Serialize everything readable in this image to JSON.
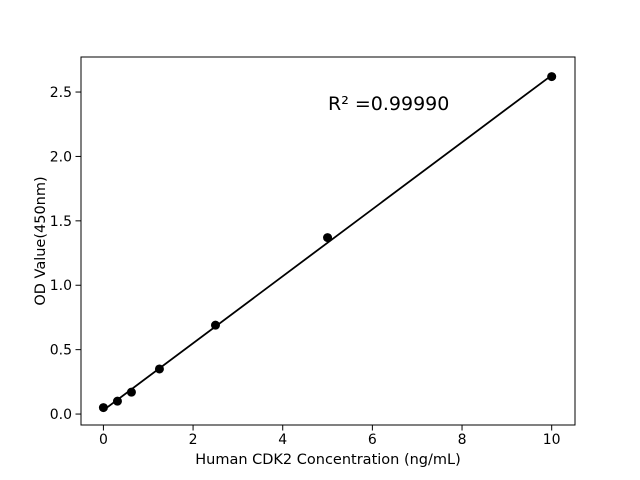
{
  "figure": {
    "background": "#ffffff"
  },
  "chart_data": {
    "type": "scatter",
    "title": "",
    "xlabel": "Human CDK2 Concentration (ng/mL)",
    "ylabel": "OD Value(450nm)",
    "annotation": {
      "text": "R² =0.99990"
    },
    "x": [
      0,
      0.313,
      0.625,
      1.25,
      2.5,
      5,
      10
    ],
    "y": [
      0.05,
      0.1,
      0.17,
      0.35,
      0.69,
      1.37,
      2.62
    ],
    "fit_line": {
      "x": [
        0,
        10
      ],
      "y": [
        0.03,
        2.63
      ]
    },
    "x_ticks": [
      0,
      2,
      4,
      6,
      8,
      10
    ],
    "x_tick_labels": [
      "0",
      "2",
      "4",
      "6",
      "8",
      "10"
    ],
    "y_ticks": [
      0.0,
      0.5,
      1.0,
      1.5,
      2.0,
      2.5
    ],
    "y_tick_labels": [
      "0.0",
      "0.5",
      "1.0",
      "1.5",
      "2.0",
      "2.5"
    ],
    "xlim": [
      -0.5,
      10.52
    ],
    "ylim": [
      -0.085,
      2.772
    ],
    "grid": false,
    "legend": null,
    "marker_color": "#000000",
    "line_color": "#000000",
    "frame_color": "#000000"
  }
}
